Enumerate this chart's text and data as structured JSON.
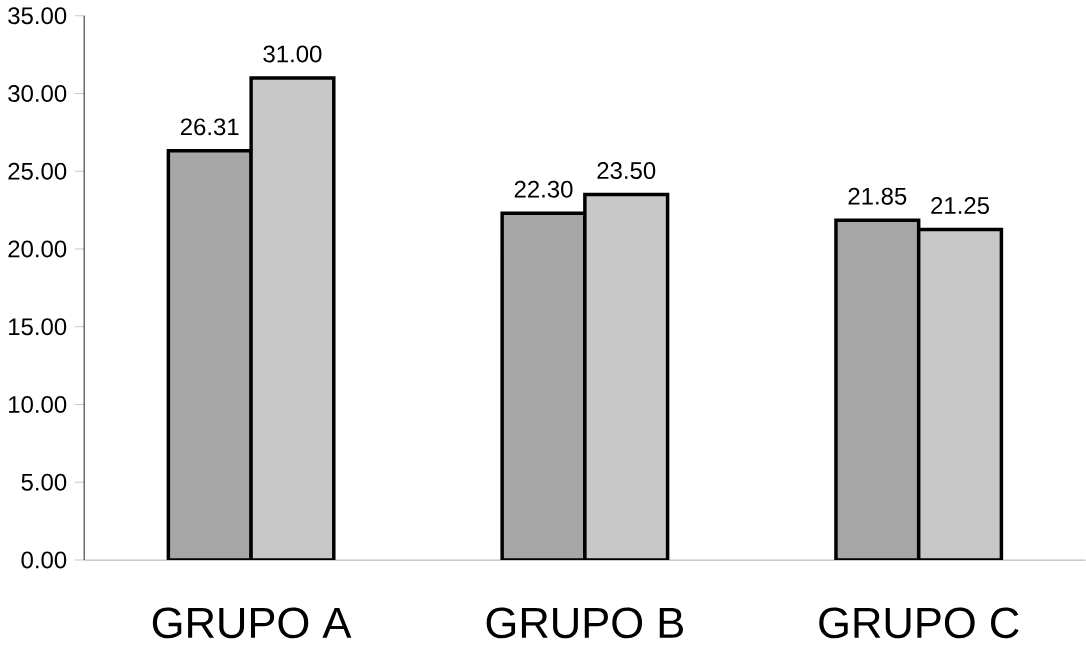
{
  "chart_data": {
    "type": "bar",
    "categories": [
      "GRUPO A",
      "GRUPO B",
      "GRUPO C"
    ],
    "series": [
      {
        "color": "#a6a6a6",
        "values": [
          26.31,
          22.3,
          21.85
        ],
        "value_labels": [
          "26.31",
          "22.30",
          "21.85"
        ]
      },
      {
        "color": "#c8c8c8",
        "values": [
          31.0,
          23.5,
          21.25
        ],
        "value_labels": [
          "31.00",
          "23.50",
          "21.25"
        ]
      }
    ],
    "ylim": [
      0,
      35
    ],
    "yticks": [
      {
        "value": 0,
        "label": "0.00"
      },
      {
        "value": 5,
        "label": "5.00"
      },
      {
        "value": 10,
        "label": "10.00"
      },
      {
        "value": 15,
        "label": "15.00"
      },
      {
        "value": 20,
        "label": "20.00"
      },
      {
        "value": 25,
        "label": "25.00"
      },
      {
        "value": 30,
        "label": "30.00"
      },
      {
        "value": 35,
        "label": "35.00"
      }
    ],
    "grid": false
  }
}
